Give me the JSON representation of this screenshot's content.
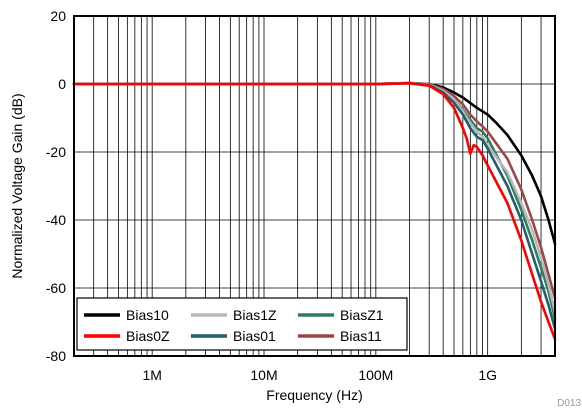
{
  "chart_data": {
    "type": "line",
    "title": "",
    "xlabel": "Frequency (Hz)",
    "ylabel": "Normalized Voltage Gain (dB)",
    "xscale": "log",
    "xlim": [
      200000,
      4000000000
    ],
    "ylim": [
      -80,
      20
    ],
    "x_tick_values": [
      1000000,
      10000000,
      100000000,
      1000000000
    ],
    "x_tick_labels": [
      "1M",
      "10M",
      "100M",
      "1G"
    ],
    "y_tick_values": [
      20,
      0,
      -20,
      -40,
      -60,
      -80
    ],
    "y_tick_labels": [
      "20",
      "0",
      "-20",
      "-40",
      "-60",
      "-80"
    ],
    "grid": true,
    "legend_position": "bottom-left",
    "series": [
      {
        "name": "Bias10",
        "color": "#000000",
        "points": [
          [
            200000,
            0
          ],
          [
            100000000,
            0
          ],
          [
            200000000,
            0.3
          ],
          [
            300000000,
            0
          ],
          [
            400000000,
            -1
          ],
          [
            500000000,
            -2.5
          ],
          [
            600000000,
            -4
          ],
          [
            800000000,
            -7
          ],
          [
            1000000000,
            -9
          ],
          [
            1200000000,
            -11.5
          ],
          [
            1500000000,
            -15
          ],
          [
            2000000000,
            -21
          ],
          [
            2500000000,
            -27
          ],
          [
            3000000000,
            -33
          ],
          [
            3500000000,
            -40
          ],
          [
            4000000000,
            -47
          ]
        ]
      },
      {
        "name": "Bias0Z",
        "color": "#ff0000",
        "points": [
          [
            200000,
            0
          ],
          [
            100000000,
            0
          ],
          [
            200000000,
            0.2
          ],
          [
            300000000,
            -0.5
          ],
          [
            400000000,
            -3
          ],
          [
            500000000,
            -7
          ],
          [
            600000000,
            -13
          ],
          [
            650000000,
            -16
          ],
          [
            700000000,
            -20.5
          ],
          [
            750000000,
            -18
          ],
          [
            800000000,
            -18.5
          ],
          [
            900000000,
            -21
          ],
          [
            1000000000,
            -24
          ],
          [
            1500000000,
            -35
          ],
          [
            2000000000,
            -46
          ],
          [
            2500000000,
            -56
          ],
          [
            3000000000,
            -64
          ],
          [
            3500000000,
            -70
          ],
          [
            4000000000,
            -75
          ]
        ]
      },
      {
        "name": "Bias1Z",
        "color": "#b8b8b8",
        "points": [
          [
            200000,
            0
          ],
          [
            100000000,
            0
          ],
          [
            200000000,
            0.3
          ],
          [
            300000000,
            -0.2
          ],
          [
            400000000,
            -2
          ],
          [
            500000000,
            -4.5
          ],
          [
            600000000,
            -8
          ],
          [
            700000000,
            -11.5
          ],
          [
            800000000,
            -14
          ],
          [
            900000000,
            -15.5
          ],
          [
            1000000000,
            -18
          ],
          [
            1500000000,
            -26
          ],
          [
            2000000000,
            -35
          ],
          [
            2500000000,
            -43
          ],
          [
            3000000000,
            -51
          ],
          [
            3500000000,
            -59
          ],
          [
            4000000000,
            -67
          ]
        ]
      },
      {
        "name": "Bias01",
        "color": "#1f5f6f",
        "points": [
          [
            200000,
            0
          ],
          [
            100000000,
            0
          ],
          [
            200000000,
            0.2
          ],
          [
            300000000,
            -0.3
          ],
          [
            400000000,
            -2.5
          ],
          [
            500000000,
            -5.5
          ],
          [
            600000000,
            -9
          ],
          [
            700000000,
            -13
          ],
          [
            800000000,
            -15.5
          ],
          [
            900000000,
            -16.5
          ],
          [
            1000000000,
            -19
          ],
          [
            1500000000,
            -30
          ],
          [
            2000000000,
            -40
          ],
          [
            2500000000,
            -50
          ],
          [
            3000000000,
            -58
          ],
          [
            3500000000,
            -65
          ],
          [
            4000000000,
            -72
          ]
        ]
      },
      {
        "name": "BiasZ1",
        "color": "#2e7d5b",
        "points": [
          [
            200000,
            0
          ],
          [
            100000000,
            0
          ],
          [
            200000000,
            0.3
          ],
          [
            300000000,
            -0.2
          ],
          [
            400000000,
            -2
          ],
          [
            500000000,
            -4.5
          ],
          [
            600000000,
            -7.5
          ],
          [
            700000000,
            -10.5
          ],
          [
            800000000,
            -13
          ],
          [
            900000000,
            -14
          ],
          [
            1000000000,
            -16
          ],
          [
            1500000000,
            -27
          ],
          [
            2000000000,
            -37
          ],
          [
            2500000000,
            -46
          ],
          [
            3000000000,
            -54
          ],
          [
            3500000000,
            -61
          ],
          [
            4000000000,
            -69
          ]
        ]
      },
      {
        "name": "Bias11",
        "color": "#a0454a",
        "points": [
          [
            200000,
            0
          ],
          [
            100000000,
            0
          ],
          [
            200000000,
            0.3
          ],
          [
            300000000,
            0
          ],
          [
            400000000,
            -1.5
          ],
          [
            500000000,
            -3.5
          ],
          [
            600000000,
            -6
          ],
          [
            700000000,
            -9
          ],
          [
            800000000,
            -11
          ],
          [
            900000000,
            -12.5
          ],
          [
            1000000000,
            -14
          ],
          [
            1500000000,
            -22
          ],
          [
            2000000000,
            -31
          ],
          [
            2500000000,
            -40
          ],
          [
            3000000000,
            -48
          ],
          [
            3500000000,
            -56
          ],
          [
            4000000000,
            -63
          ]
        ]
      }
    ],
    "legend_order": [
      "Bias10",
      "Bias1Z",
      "BiasZ1",
      "Bias0Z",
      "Bias01",
      "Bias11"
    ]
  },
  "figure_id": "D013"
}
